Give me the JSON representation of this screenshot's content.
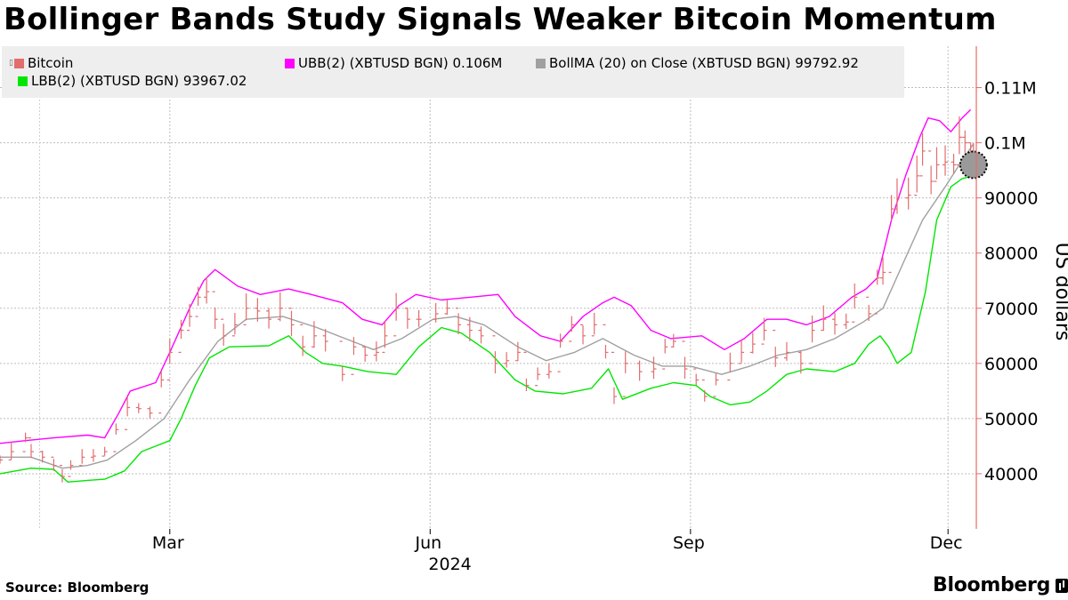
{
  "chart_data": {
    "type": "line",
    "title": "Bollinger Bands Study Signals Weaker Bitcoin Momentum",
    "ylabel": "US dollars",
    "year_label": "2024",
    "ylim": [
      30000,
      117500
    ],
    "y_ticks": [
      {
        "value": 40000,
        "label": "40000"
      },
      {
        "value": 50000,
        "label": "50000"
      },
      {
        "value": 60000,
        "label": "60000"
      },
      {
        "value": 70000,
        "label": "70000"
      },
      {
        "value": 80000,
        "label": "80000"
      },
      {
        "value": 90000,
        "label": "90000"
      },
      {
        "value": 100000,
        "label": "0.1M"
      },
      {
        "value": 110000,
        "label": "0.11M"
      }
    ],
    "x_range": [
      "2024-01-01",
      "2024-12-11"
    ],
    "x_ticks": [
      {
        "date": "2024-03-01",
        "label": "Mar"
      },
      {
        "date": "2024-06-01",
        "label": "Jun"
      },
      {
        "date": "2024-09-01",
        "label": "Sep"
      },
      {
        "date": "2024-12-01",
        "label": "Dec"
      }
    ],
    "grid": true,
    "legend_position": "top-left",
    "legend": [
      {
        "label": "Bitcoin",
        "color": "#e26d6d"
      },
      {
        "label": "UBB(2) (XBTUSD BGN) 0.106M",
        "color": "#ff00ff"
      },
      {
        "label": "BollMA (20)  on Close (XBTUSD BGN) 99792.92",
        "color": "#a0a0a0"
      },
      {
        "label": "LBB(2) (XBTUSD BGN) 93967.02",
        "color": "#00e600"
      }
    ],
    "highlight": {
      "date": "2024-12-10",
      "value": 96000
    },
    "series": [
      {
        "name": "Bitcoin",
        "style": "ohlc",
        "color": "#e26d6d",
        "points": [
          [
            "2024-01-01",
            42500
          ],
          [
            "2024-01-05",
            44000
          ],
          [
            "2024-01-10",
            46500
          ],
          [
            "2024-01-12",
            44000
          ],
          [
            "2024-01-16",
            43000
          ],
          [
            "2024-01-20",
            41500
          ],
          [
            "2024-01-23",
            39500
          ],
          [
            "2024-01-26",
            41500
          ],
          [
            "2024-01-30",
            43000
          ],
          [
            "2024-02-03",
            43200
          ],
          [
            "2024-02-07",
            44000
          ],
          [
            "2024-02-11",
            48000
          ],
          [
            "2024-02-15",
            52000
          ],
          [
            "2024-02-19",
            51800
          ],
          [
            "2024-02-23",
            51000
          ],
          [
            "2024-02-27",
            57000
          ],
          [
            "2024-03-01",
            62000
          ],
          [
            "2024-03-05",
            66000
          ],
          [
            "2024-03-08",
            68500
          ],
          [
            "2024-03-11",
            72000
          ],
          [
            "2024-03-14",
            73000
          ],
          [
            "2024-03-17",
            68000
          ],
          [
            "2024-03-20",
            65000
          ],
          [
            "2024-03-24",
            67000
          ],
          [
            "2024-03-28",
            70000
          ],
          [
            "2024-04-01",
            69500
          ],
          [
            "2024-04-05",
            68000
          ],
          [
            "2024-04-09",
            70000
          ],
          [
            "2024-04-13",
            67000
          ],
          [
            "2024-04-17",
            63000
          ],
          [
            "2024-04-21",
            65000
          ],
          [
            "2024-04-25",
            64000
          ],
          [
            "2024-05-01",
            58000
          ],
          [
            "2024-05-05",
            63000
          ],
          [
            "2024-05-09",
            61500
          ],
          [
            "2024-05-13",
            62000
          ],
          [
            "2024-05-16",
            65000
          ],
          [
            "2024-05-20",
            70000
          ],
          [
            "2024-05-24",
            68000
          ],
          [
            "2024-05-28",
            68000
          ],
          [
            "2024-06-03",
            69000
          ],
          [
            "2024-06-07",
            70000
          ],
          [
            "2024-06-11",
            67000
          ],
          [
            "2024-06-15",
            66000
          ],
          [
            "2024-06-19",
            65000
          ],
          [
            "2024-06-24",
            60000
          ],
          [
            "2024-06-28",
            60500
          ],
          [
            "2024-07-02",
            62000
          ],
          [
            "2024-07-05",
            56000
          ],
          [
            "2024-07-09",
            58000
          ],
          [
            "2024-07-13",
            58500
          ],
          [
            "2024-07-17",
            64000
          ],
          [
            "2024-07-21",
            67000
          ],
          [
            "2024-07-25",
            65000
          ],
          [
            "2024-07-29",
            67000
          ],
          [
            "2024-08-02",
            62000
          ],
          [
            "2024-08-05",
            54000
          ],
          [
            "2024-08-09",
            60000
          ],
          [
            "2024-08-14",
            58500
          ],
          [
            "2024-08-19",
            59000
          ],
          [
            "2024-08-23",
            63000
          ],
          [
            "2024-08-26",
            64000
          ],
          [
            "2024-08-30",
            59000
          ],
          [
            "2024-09-03",
            57000
          ],
          [
            "2024-09-06",
            54000
          ],
          [
            "2024-09-10",
            57000
          ],
          [
            "2024-09-15",
            60000
          ],
          [
            "2024-09-19",
            62000
          ],
          [
            "2024-09-23",
            63500
          ],
          [
            "2024-09-27",
            66000
          ],
          [
            "2024-10-01",
            61000
          ],
          [
            "2024-10-05",
            62000
          ],
          [
            "2024-10-10",
            60000
          ],
          [
            "2024-10-14",
            66000
          ],
          [
            "2024-10-18",
            68000
          ],
          [
            "2024-10-22",
            67000
          ],
          [
            "2024-10-26",
            67500
          ],
          [
            "2024-10-29",
            72000
          ],
          [
            "2024-11-03",
            69000
          ],
          [
            "2024-11-06",
            75500
          ],
          [
            "2024-11-08",
            76500
          ],
          [
            "2024-11-11",
            88000
          ],
          [
            "2024-11-13",
            90000
          ],
          [
            "2024-11-17",
            90500
          ],
          [
            "2024-11-20",
            94000
          ],
          [
            "2024-11-22",
            98500
          ],
          [
            "2024-11-25",
            93000
          ],
          [
            "2024-11-27",
            96000
          ],
          [
            "2024-11-30",
            96500
          ],
          [
            "2024-12-03",
            96000
          ],
          [
            "2024-12-05",
            101000
          ],
          [
            "2024-12-07",
            100000
          ],
          [
            "2024-12-09",
            97000
          ],
          [
            "2024-12-10",
            96500
          ]
        ]
      },
      {
        "name": "UBB(2) (XBTUSD BGN)",
        "style": "line",
        "color": "#ff00ff",
        "points": [
          [
            "2024-01-01",
            45500
          ],
          [
            "2024-01-10",
            46000
          ],
          [
            "2024-01-20",
            46500
          ],
          [
            "2024-02-01",
            47000
          ],
          [
            "2024-02-07",
            46500
          ],
          [
            "2024-02-12",
            51000
          ],
          [
            "2024-02-16",
            55000
          ],
          [
            "2024-02-25",
            56500
          ],
          [
            "2024-03-01",
            62000
          ],
          [
            "2024-03-08",
            70000
          ],
          [
            "2024-03-13",
            75000
          ],
          [
            "2024-03-17",
            77000
          ],
          [
            "2024-03-25",
            74000
          ],
          [
            "2024-04-02",
            72500
          ],
          [
            "2024-04-12",
            73500
          ],
          [
            "2024-04-20",
            72500
          ],
          [
            "2024-05-01",
            71000
          ],
          [
            "2024-05-08",
            68000
          ],
          [
            "2024-05-15",
            67000
          ],
          [
            "2024-05-21",
            70500
          ],
          [
            "2024-05-27",
            72500
          ],
          [
            "2024-06-05",
            71500
          ],
          [
            "2024-06-15",
            72000
          ],
          [
            "2024-06-25",
            72500
          ],
          [
            "2024-07-01",
            68500
          ],
          [
            "2024-07-10",
            65000
          ],
          [
            "2024-07-17",
            64000
          ],
          [
            "2024-07-25",
            68500
          ],
          [
            "2024-08-01",
            71000
          ],
          [
            "2024-08-05",
            72000
          ],
          [
            "2024-08-11",
            70500
          ],
          [
            "2024-08-18",
            66000
          ],
          [
            "2024-08-25",
            64500
          ],
          [
            "2024-09-05",
            65000
          ],
          [
            "2024-09-13",
            62500
          ],
          [
            "2024-09-20",
            64500
          ],
          [
            "2024-09-28",
            68000
          ],
          [
            "2024-10-05",
            68000
          ],
          [
            "2024-10-12",
            67000
          ],
          [
            "2024-10-20",
            68500
          ],
          [
            "2024-10-28",
            72000
          ],
          [
            "2024-11-02",
            73500
          ],
          [
            "2024-11-06",
            75500
          ],
          [
            "2024-11-11",
            86000
          ],
          [
            "2024-11-16",
            94000
          ],
          [
            "2024-11-21",
            101000
          ],
          [
            "2024-11-24",
            104500
          ],
          [
            "2024-11-28",
            104000
          ],
          [
            "2024-12-02",
            102000
          ],
          [
            "2024-12-06",
            104500
          ],
          [
            "2024-12-09",
            106000
          ]
        ]
      },
      {
        "name": "BollMA (20)",
        "style": "line",
        "color": "#a0a0a0",
        "points": [
          [
            "2024-01-01",
            43000
          ],
          [
            "2024-01-12",
            43000
          ],
          [
            "2024-01-23",
            41000
          ],
          [
            "2024-02-01",
            41500
          ],
          [
            "2024-02-08",
            42500
          ],
          [
            "2024-02-18",
            46000
          ],
          [
            "2024-02-28",
            50000
          ],
          [
            "2024-03-08",
            57000
          ],
          [
            "2024-03-18",
            64000
          ],
          [
            "2024-03-28",
            68000
          ],
          [
            "2024-04-10",
            68500
          ],
          [
            "2024-04-22",
            66500
          ],
          [
            "2024-05-02",
            64500
          ],
          [
            "2024-05-12",
            62500
          ],
          [
            "2024-05-22",
            64500
          ],
          [
            "2024-06-02",
            68000
          ],
          [
            "2024-06-10",
            68500
          ],
          [
            "2024-06-20",
            67000
          ],
          [
            "2024-07-02",
            63000
          ],
          [
            "2024-07-12",
            60500
          ],
          [
            "2024-07-22",
            62000
          ],
          [
            "2024-08-01",
            64500
          ],
          [
            "2024-08-12",
            61500
          ],
          [
            "2024-08-22",
            59500
          ],
          [
            "2024-09-01",
            59500
          ],
          [
            "2024-09-12",
            58000
          ],
          [
            "2024-09-22",
            59500
          ],
          [
            "2024-10-02",
            61500
          ],
          [
            "2024-10-12",
            62500
          ],
          [
            "2024-10-22",
            64500
          ],
          [
            "2024-11-01",
            67500
          ],
          [
            "2024-11-08",
            70000
          ],
          [
            "2024-11-15",
            78000
          ],
          [
            "2024-11-22",
            86000
          ],
          [
            "2024-11-30",
            92000
          ],
          [
            "2024-12-05",
            96000
          ],
          [
            "2024-12-10",
            99800
          ]
        ]
      },
      {
        "name": "LBB(2) (XBTUSD BGN)",
        "style": "line",
        "color": "#00e600",
        "points": [
          [
            "2024-01-01",
            40000
          ],
          [
            "2024-01-12",
            41000
          ],
          [
            "2024-01-20",
            40800
          ],
          [
            "2024-01-25",
            38500
          ],
          [
            "2024-02-01",
            38800
          ],
          [
            "2024-02-07",
            39000
          ],
          [
            "2024-02-14",
            40500
          ],
          [
            "2024-02-20",
            44000
          ],
          [
            "2024-02-25",
            45000
          ],
          [
            "2024-03-01",
            46000
          ],
          [
            "2024-03-05",
            50000
          ],
          [
            "2024-03-10",
            56000
          ],
          [
            "2024-03-15",
            61000
          ],
          [
            "2024-03-22",
            63000
          ],
          [
            "2024-04-05",
            63200
          ],
          [
            "2024-04-12",
            65000
          ],
          [
            "2024-04-18",
            62000
          ],
          [
            "2024-04-24",
            60000
          ],
          [
            "2024-05-01",
            59500
          ],
          [
            "2024-05-10",
            58500
          ],
          [
            "2024-05-20",
            58000
          ],
          [
            "2024-05-28",
            63000
          ],
          [
            "2024-06-05",
            66500
          ],
          [
            "2024-06-12",
            65500
          ],
          [
            "2024-06-22",
            62000
          ],
          [
            "2024-07-01",
            57000
          ],
          [
            "2024-07-08",
            55000
          ],
          [
            "2024-07-18",
            54500
          ],
          [
            "2024-07-28",
            55500
          ],
          [
            "2024-08-03",
            59000
          ],
          [
            "2024-08-08",
            53500
          ],
          [
            "2024-08-18",
            55500
          ],
          [
            "2024-08-26",
            56500
          ],
          [
            "2024-09-03",
            56000
          ],
          [
            "2024-09-08",
            54000
          ],
          [
            "2024-09-15",
            52500
          ],
          [
            "2024-09-22",
            53000
          ],
          [
            "2024-09-28",
            55000
          ],
          [
            "2024-10-05",
            58000
          ],
          [
            "2024-10-12",
            59000
          ],
          [
            "2024-10-22",
            58500
          ],
          [
            "2024-10-29",
            60000
          ],
          [
            "2024-11-03",
            63500
          ],
          [
            "2024-11-07",
            65000
          ],
          [
            "2024-11-10",
            63000
          ],
          [
            "2024-11-13",
            60000
          ],
          [
            "2024-11-18",
            62000
          ],
          [
            "2024-11-23",
            73000
          ],
          [
            "2024-11-27",
            86000
          ],
          [
            "2024-12-02",
            92000
          ],
          [
            "2024-12-06",
            93500
          ],
          [
            "2024-12-10",
            94000
          ]
        ]
      }
    ]
  },
  "source": "Source: Bloomberg",
  "brand": "Bloomberg"
}
